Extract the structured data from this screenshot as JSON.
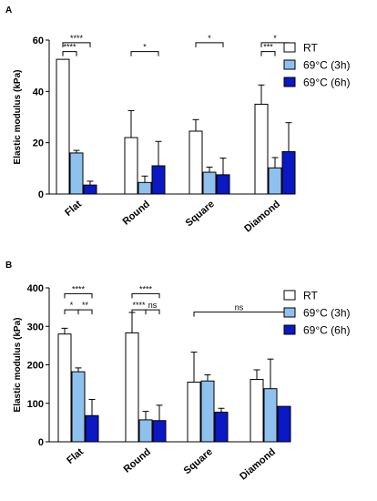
{
  "colors": {
    "RT": "#ffffff",
    "h3": "#8fc1ee",
    "h6": "#0a19c4",
    "stroke": "#000000"
  },
  "chart_data": [
    {
      "panel": "A",
      "type": "bar",
      "ylabel": "Elastic modulus (kPa)",
      "ylim": [
        0,
        60
      ],
      "yticks": [
        0,
        20,
        40,
        60
      ],
      "categories": [
        "Flat",
        "Round",
        "Square",
        "Diamond"
      ],
      "legend_position": "right",
      "series": [
        {
          "name": "RT",
          "color": "#ffffff",
          "values": [
            52.5,
            22,
            24.5,
            35
          ],
          "errors": [
            0,
            10.5,
            4.5,
            7.5
          ]
        },
        {
          "name": "69°C (3h)",
          "color": "#8fc1ee",
          "values": [
            16,
            4.5,
            8.5,
            10.2
          ],
          "errors": [
            1,
            2.5,
            2,
            4
          ]
        },
        {
          "name": "69°C (6h)",
          "color": "#0a19c4",
          "values": [
            3.5,
            11,
            7.5,
            16.5
          ],
          "errors": [
            1.5,
            9.5,
            6.5,
            11.3
          ]
        }
      ],
      "significance": [
        {
          "label": "****",
          "from_group": 0,
          "from_series": 0,
          "to_group": 0,
          "to_series": 2,
          "level": 59
        },
        {
          "label": "****",
          "from_group": 0,
          "from_series": 0,
          "to_group": 0,
          "to_series": 1,
          "level": 55.5
        },
        {
          "label": "*",
          "from_group": 1,
          "from_series": 0,
          "to_group": 1,
          "to_series": 2,
          "level": 55.5
        },
        {
          "label": "*",
          "from_group": 2,
          "from_series": 0,
          "to_group": 2,
          "to_series": 2,
          "level": 59
        },
        {
          "label": "*",
          "from_group": 3,
          "from_series": 0,
          "to_group": 3,
          "to_series": 2,
          "level": 59
        },
        {
          "label": "***",
          "from_group": 3,
          "from_series": 0,
          "to_group": 3,
          "to_series": 1,
          "level": 55.5
        }
      ]
    },
    {
      "panel": "B",
      "type": "bar",
      "ylabel": "Elastic modulus (kPa)",
      "ylim": [
        0,
        400
      ],
      "yticks": [
        0,
        100,
        200,
        300,
        400
      ],
      "categories": [
        "Flat",
        "Round",
        "Square",
        "Diamond"
      ],
      "legend_position": "right",
      "series": [
        {
          "name": "RT",
          "color": "#ffffff",
          "values": [
            280,
            283,
            155,
            162
          ],
          "errors": [
            15,
            53,
            78,
            25
          ]
        },
        {
          "name": "69°C (3h)",
          "color": "#8fc1ee",
          "values": [
            182,
            57,
            158,
            138
          ],
          "errors": [
            10,
            22,
            16,
            77
          ]
        },
        {
          "name": "69°C (6h)",
          "color": "#0a19c4",
          "values": [
            68,
            55,
            77,
            92
          ],
          "errors": [
            42,
            40,
            10,
            0
          ]
        }
      ],
      "significance": [
        {
          "label": "****",
          "from_group": 0,
          "from_series": 0,
          "to_group": 0,
          "to_series": 2,
          "level": 385
        },
        {
          "label": "*",
          "from_group": 0,
          "from_series": 0,
          "to_group": 0,
          "to_series": 1,
          "level": 343
        },
        {
          "label": "**",
          "from_group": 0,
          "from_series": 1,
          "to_group": 0,
          "to_series": 2,
          "level": 343
        },
        {
          "label": "****",
          "from_group": 1,
          "from_series": 0,
          "to_group": 1,
          "to_series": 2,
          "level": 385
        },
        {
          "label": "****",
          "from_group": 1,
          "from_series": 0,
          "to_group": 1,
          "to_series": 1,
          "level": 343
        },
        {
          "label": "ns",
          "from_group": 1,
          "from_series": 1,
          "to_group": 1,
          "to_series": 2,
          "level": 343
        },
        {
          "label": "ns",
          "from_group": 2,
          "from_series": 0,
          "to_group": 3,
          "to_series": 2,
          "level": 337
        }
      ]
    }
  ]
}
